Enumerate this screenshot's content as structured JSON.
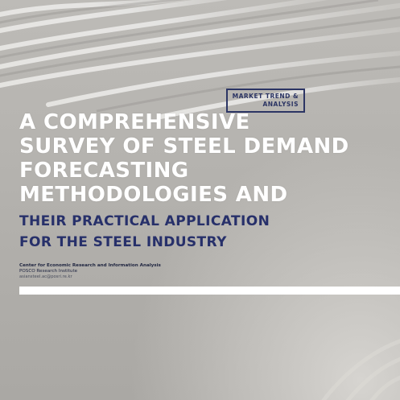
{
  "badge": {
    "line1": "MARKET TREND &",
    "line2": "ANALYSIS"
  },
  "title": {
    "white_lines": [
      "A COMPREHENSIVE",
      "SURVEY OF STEEL DEMAND",
      "FORECASTING",
      "METHODOLOGIES AND"
    ],
    "navy_lines": [
      "THEIR PRACTICAL APPLICATION",
      "FOR THE STEEL INDUSTRY"
    ]
  },
  "author": {
    "organization": "Center for Economic Research and Information Analysis",
    "institute": "POSCO Research Institute",
    "email": "asiansteel.ac@posri.re.kr"
  },
  "colors": {
    "background": "#b3b1ad",
    "navy": "#27306a",
    "white": "#ffffff"
  }
}
